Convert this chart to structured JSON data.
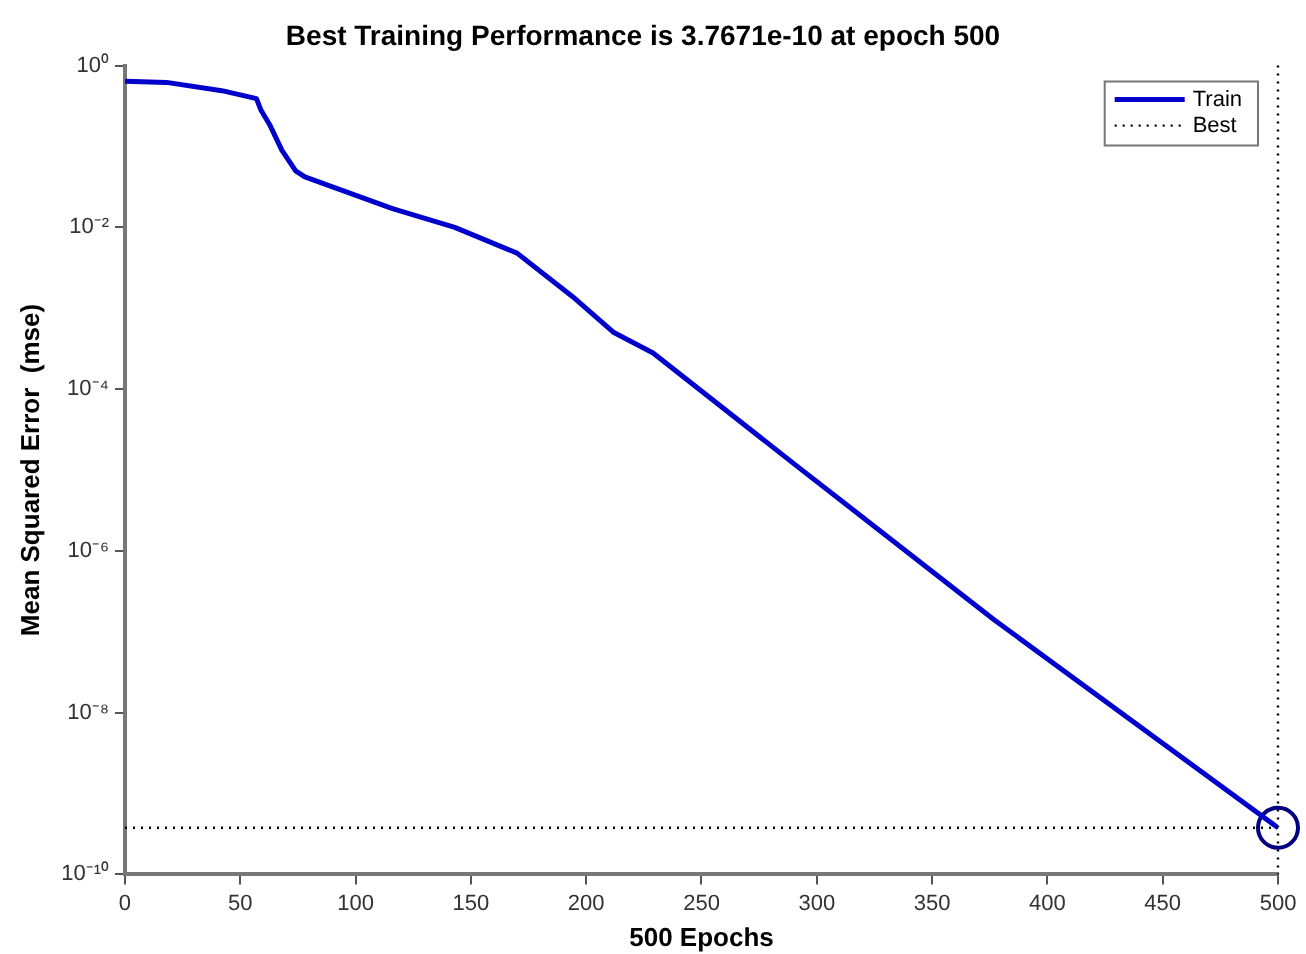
{
  "chart_data": {
    "type": "line",
    "title": "Best Training Performance is 3.7671e-10 at epoch 500",
    "xlabel": "500 Epochs",
    "ylabel": "Mean Squared Error  (mse)",
    "log": "y",
    "grid": false,
    "legend": "top right",
    "marker": "none",
    "xlim": [
      0,
      500
    ],
    "xticks": [
      0,
      50,
      100,
      150,
      200,
      250,
      300,
      350,
      400,
      450,
      500
    ],
    "ylim": [
      1e-10,
      1
    ],
    "yticks": [
      {
        "value": 1,
        "label": "10⁰"
      },
      {
        "value": 0.01,
        "label": "10⁻²"
      },
      {
        "value": 0.0001,
        "label": "10⁻⁴"
      },
      {
        "value": 1e-06,
        "label": "10⁻⁶"
      },
      {
        "value": 1e-08,
        "label": "10⁻⁸"
      },
      {
        "value": 1e-10,
        "label": "10⁻¹⁰"
      }
    ],
    "series": [
      {
        "name": "Train",
        "color": "#0000cc",
        "line_style": "solid",
        "x": [
          0,
          18,
          42,
          57,
          59,
          63,
          68,
          74,
          78,
          116,
          143,
          170,
          194,
          212,
          229,
          290,
          377,
          500
        ],
        "values": [
          0.64,
          0.62,
          0.49,
          0.39,
          0.28,
          0.18,
          0.09,
          0.05,
          0.042,
          0.017,
          0.01,
          0.0048,
          0.0014,
          0.0005,
          0.00028,
          1.2e-05,
          1.4e-07,
          3.7671e-10
        ]
      },
      {
        "name": "Best",
        "color": "#000000",
        "line_style": "dotted",
        "x": [
          0,
          500
        ],
        "values": [
          3.7671e-10,
          3.7671e-10
        ]
      },
      {
        "type": "scatter",
        "color": "#000080",
        "marker": "circle",
        "x": [
          500
        ],
        "values": [
          3.7671e-10
        ]
      }
    ],
    "ref_lines": [
      {
        "axis": "x",
        "value": 500,
        "color": "#000000",
        "line_style": "dotted"
      }
    ]
  }
}
